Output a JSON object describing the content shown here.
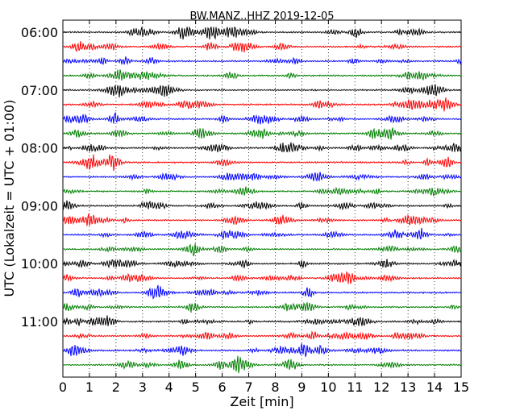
{
  "chart_data": {
    "type": "line",
    "title": "BW.MANZ..HHZ 2019-12-05",
    "xlabel": "Zeit  [min]",
    "ylabel": "UTC (Lokalzeit = UTC + 01:00)",
    "xlim": [
      0,
      15
    ],
    "x_ticks": [
      "0",
      "1",
      "2",
      "3",
      "4",
      "5",
      "6",
      "7",
      "8",
      "9",
      "10",
      "11",
      "12",
      "13",
      "14",
      "15"
    ],
    "y_ticks": [
      "06:00",
      "07:00",
      "08:00",
      "09:00",
      "10:00",
      "11:00"
    ],
    "trace_interval_min": 15,
    "trace_count": 24,
    "trace_colors": [
      "#000000",
      "#ff0000",
      "#0000ff",
      "#007f00"
    ],
    "vertical_grid": "dotted",
    "description_note": "seismic helicorder; each row is one 15-minute segment, colors cycle black-red-blue-green"
  }
}
